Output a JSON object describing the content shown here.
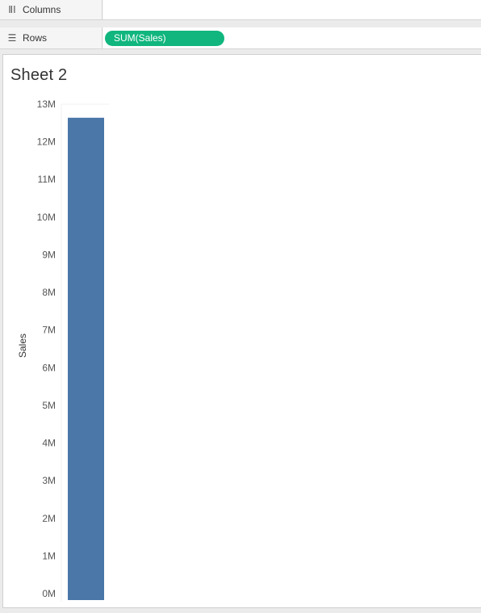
{
  "shelves": {
    "columns": {
      "label": "Columns",
      "icon": "columns-icon"
    },
    "rows": {
      "label": "Rows",
      "icon": "rows-icon",
      "pill": "SUM(Sales)"
    }
  },
  "sheet": {
    "title": "Sheet 2"
  },
  "colors": {
    "bar": "#4a76a8",
    "pill": "#10b67d",
    "grid": "#f0f0f0"
  },
  "chart_data": {
    "type": "bar",
    "categories": [
      ""
    ],
    "values": [
      12640000
    ],
    "xlabel": "",
    "ylabel": "Sales",
    "ylim": [
      0,
      13000000
    ],
    "yticks": [
      0,
      1000000,
      2000000,
      3000000,
      4000000,
      5000000,
      6000000,
      7000000,
      8000000,
      9000000,
      10000000,
      11000000,
      12000000,
      13000000
    ],
    "ytick_labels": [
      "0M",
      "1M",
      "2M",
      "3M",
      "4M",
      "5M",
      "6M",
      "7M",
      "8M",
      "9M",
      "10M",
      "11M",
      "12M",
      "13M"
    ],
    "grid": false,
    "legend": "none"
  }
}
